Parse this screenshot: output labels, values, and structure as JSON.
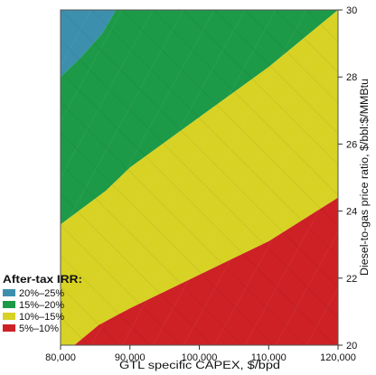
{
  "chart_data": {
    "type": "area",
    "title": "",
    "xlabel": "GTL specific CAPEX, $/bpd",
    "ylabel": "Diesel-to-gas price ratio, $/bbl:$/MMBtu",
    "x_tick_labels": [
      "80,000",
      "90,000",
      "100,000",
      "110,000",
      "120,000"
    ],
    "y_tick_labels": [
      "20",
      "22",
      "24",
      "26",
      "28",
      "30"
    ],
    "xlim": [
      80000,
      120000
    ],
    "ylim": [
      20,
      30
    ],
    "grid": false,
    "legend_position": "bottom-left",
    "legend": {
      "title": "After-tax IRR:",
      "entries": [
        {
          "label": "20%–25%",
          "color": "#3d8fae"
        },
        {
          "label": "15%–20%",
          "color": "#1d9a48"
        },
        {
          "label": "10%–15%",
          "color": "#d7d224"
        },
        {
          "label": "5%–10%",
          "color": "#cd2126"
        }
      ]
    },
    "regions": [
      {
        "name": "20%–25%",
        "color": "#3d8fae"
      },
      {
        "name": "15%–20%",
        "color": "#1d9a48"
      },
      {
        "name": "10%–15%",
        "color": "#d7d224"
      },
      {
        "name": "5%–10%",
        "color": "#cd2126"
      }
    ],
    "boundaries": [
      {
        "between": [
          "20%–25%",
          "15%–20%"
        ],
        "points": [
          [
            80000,
            28.0
          ],
          [
            83000,
            28.6
          ],
          [
            86000,
            29.3
          ],
          [
            88000,
            30.0
          ]
        ]
      },
      {
        "between": [
          "15%–20%",
          "10%–15%"
        ],
        "points": [
          [
            80000,
            23.6
          ],
          [
            86500,
            24.6
          ],
          [
            90000,
            25.3
          ],
          [
            100000,
            26.8
          ],
          [
            110000,
            28.3
          ],
          [
            120000,
            30.0
          ]
        ]
      },
      {
        "between": [
          "10%–15%",
          "5%–10%"
        ],
        "points": [
          [
            82000,
            20.0
          ],
          [
            85500,
            20.6
          ],
          [
            90000,
            21.1
          ],
          [
            100000,
            22.1
          ],
          [
            110000,
            23.1
          ],
          [
            120000,
            24.4
          ]
        ]
      }
    ]
  }
}
